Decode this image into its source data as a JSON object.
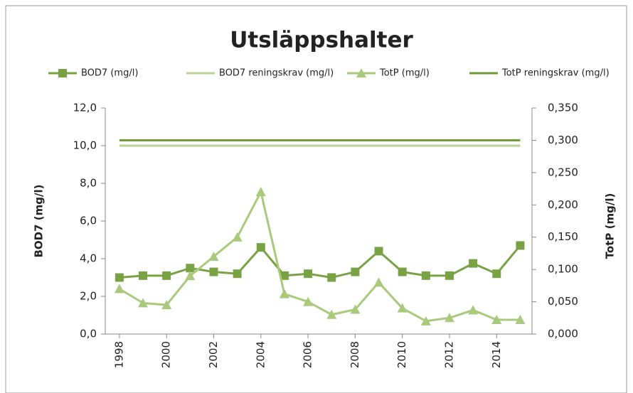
{
  "chart_data": {
    "type": "line",
    "title": "Utsläppshalter",
    "y_label": "BOD7 (mg/l)",
    "y2_label": "TotP (mg/l)",
    "x": [
      1998,
      1999,
      2000,
      2001,
      2002,
      2003,
      2004,
      2005,
      2006,
      2007,
      2008,
      2009,
      2010,
      2011,
      2012,
      2013,
      2014,
      2015
    ],
    "xlim": [
      1997.4,
      2015.5
    ],
    "xticks": [
      1998,
      2000,
      2002,
      2004,
      2006,
      2008,
      2010,
      2012,
      2014
    ],
    "ylim": [
      0,
      12
    ],
    "yticks": [
      {
        "value": 0,
        "label": "0,0"
      },
      {
        "value": 2,
        "label": "2,0"
      },
      {
        "value": 4,
        "label": "4,0"
      },
      {
        "value": 6,
        "label": "6,0"
      },
      {
        "value": 8,
        "label": "8,0"
      },
      {
        "value": 10,
        "label": "10,0"
      },
      {
        "value": 12,
        "label": "12,0"
      }
    ],
    "y2lim": [
      0,
      0.35
    ],
    "y2ticks": [
      {
        "value": 0,
        "label": "0,000"
      },
      {
        "value": 0.05,
        "label": "0,050"
      },
      {
        "value": 0.1,
        "label": "0,100"
      },
      {
        "value": 0.15,
        "label": "0,150"
      },
      {
        "value": 0.2,
        "label": "0,200"
      },
      {
        "value": 0.25,
        "label": "0,250"
      },
      {
        "value": 0.3,
        "label": "0,300"
      },
      {
        "value": 0.35,
        "label": "0,350"
      }
    ],
    "grid": false,
    "legend": "top",
    "series": [
      {
        "name": "BOD7 (mg/l)",
        "color": "#79a245",
        "marker": "square",
        "axis": "y",
        "values": [
          3.0,
          3.1,
          3.1,
          3.5,
          3.3,
          3.2,
          4.6,
          3.1,
          3.2,
          3.0,
          3.3,
          4.4,
          3.3,
          3.1,
          3.1,
          3.75,
          3.2,
          4.7
        ]
      },
      {
        "name": "BOD7 reningskrav (mg/l)",
        "color": "#b8d393",
        "marker": "none",
        "axis": "y",
        "values": [
          10,
          10,
          10,
          10,
          10,
          10,
          10,
          10,
          10,
          10,
          10,
          10,
          10,
          10,
          10,
          10,
          10,
          10
        ]
      },
      {
        "name": "TotP (mg/l)",
        "color": "#a9c97c",
        "marker": "triangle",
        "axis": "y2",
        "values": [
          0.07,
          0.048,
          0.045,
          0.09,
          0.12,
          0.15,
          0.22,
          0.062,
          0.05,
          0.03,
          0.038,
          0.08,
          0.04,
          0.02,
          0.025,
          0.037,
          0.022,
          0.022
        ]
      },
      {
        "name": "TotP reningskrav (mg/l)",
        "color": "#6c9a38",
        "marker": "none",
        "axis": "y2",
        "values": [
          0.3,
          0.3,
          0.3,
          0.3,
          0.3,
          0.3,
          0.3,
          0.3,
          0.3,
          0.3,
          0.3,
          0.3,
          0.3,
          0.3,
          0.3,
          0.3,
          0.3,
          0.3
        ]
      }
    ]
  }
}
